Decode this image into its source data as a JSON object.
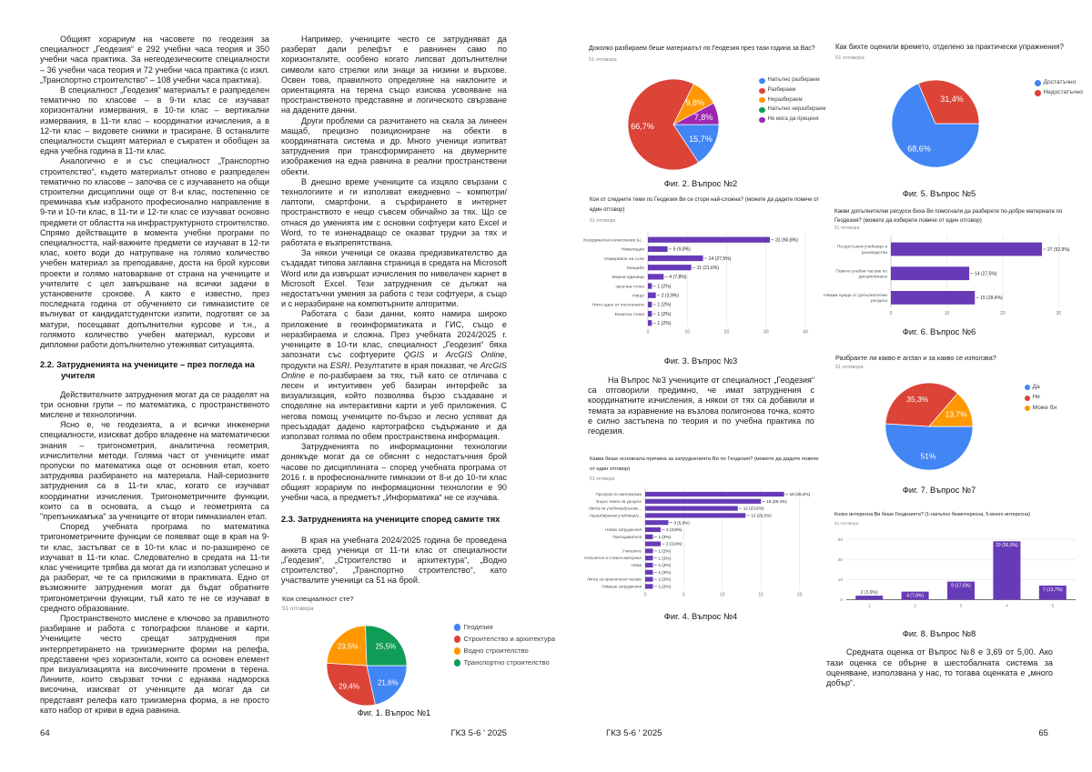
{
  "page64": {
    "col1": {
      "paragraphs_before": [
        "Общият хорариум на часовете по геодезия за специалност „Геодезия“ е 292 учебни часа теория и 350 учебни часа практика. За негеодезическите специалности – 36 учебни часа теория и 72 учебни часа практика (с изкл. „Транспортно строителство“ – 108 учебни часа практика).",
        "В специалност „Геодезия“ материалът е разпределен тематично по класове – в 9-ти клас се изучават хоризонтални измервания, в 10-ти клас – вертикални измервания, в 11-ти клас – координатни изчисления, а в 12-ти клас – видовете снимки и трасиране. В останалите специалности същият материал е съкратен и обобщен за една учебна година в 11-ти клас.",
        "Аналогично е и със специалност „Транспортно строителство“, където материалът отново е разпределен тематично по класове – започва се с изучаването на общи строителни дисциплини още от 8-и клас, постепенно се преминава към избраното професионално направление в 9-ти и 10-ти клас, в 11-ти и 12-ти клас се изучават основно предмети от областта на инфраструктурното строителство. Спрямо действащите в момента учебни програми по специалността, най-важните предмети се изучават в 12-ти клас, което води до натрупване на голямо количество учебен материал за преподаване, доста на брой курсови проекти и голямо натоварване от страна на учениците и учителите с цел завършване на всички задачи в установените срокове. А както е известно, през последната година от обучението си гимназистите се вълнуват от кандидатстудентски изпити, подготвят се за матури, посещават допълнителни курсове и т.н., а голямото количество учебен материал, курсови и дипломни работи допълнително утежняват ситуацията."
      ],
      "heading": "2.2. Затрудненията на учениците – през погледа на учителя",
      "paragraphs_after": [
        "Действителните затруднения могат да се разделят на три основни групи – по математика, с пространственото мислене и технологични.",
        "Ясно е, че геодезията, а и всички инженерни специалности, изискват добро владеене на математически знания – тригонометрия, аналитична геометрия, изчислителни методи. Голяма част от учениците имат пропуски по математика още от основния етап, което затруднява разбирането на материала. Най-сериозните затруднения са в 11-ти клас, когато се изучават координатни изчисления. Тригонометричните функции, които са в основата, а също и геометрията са \"препъникамъка\" за учениците от втори гимназиален етап.",
        "Според учебната програма по математика тригонометричните функции се появяват още в края на 9-ти клас, застъпват се в 10-ти клас и по-разширено се изучават в 11-ти клас. Следователно в средата на 11-ти клас учениците трябва да могат да ги използват успешно и да разберат, че те са приложими в практиката. Едно от възможните затруднения могат да бъдат обратните тригонометрични функции, тъй като те не се изучават в средното образование.",
        "Пространственото мислене е ключово за правилното разбиране и работа с топографски планове и карти. Учениците често срещат затруднения при интерпретирането на триизмерните форми на релефа, представени чрез хоризонтали, които са основен елемент при визуализацията на височинните промени в терена. Линиите, които свързват точки с еднаква надморска височина, изискват от учениците да могат да си представят релефа като триизмерна форма, а не просто като набор от криви в една равнина."
      ]
    },
    "col2": {
      "paragraphs_before": [
        "Например, учениците често се затрудняват да разберат дали релефът е равнинен само по хоризонталите, особено когато липсват допълнителни символи като стрелки или знаци за низини и върхове. Освен това, правилното определяне на наклоните и ориентацията на терена също изисква усвояване на пространственото представяне и логическото свързване на дадените данни.",
        "Други проблеми са разчитането на скала за линеен мащаб, прецизно позициониране на обекти в координатната система и др. Много ученици изпитват затруднения при трансформирането на двумерните изображения на една равнина в реални пространствени обекти.",
        "В днешно време учениците са изцяло свързани с технологиите и ги използват ежедневно – компютри/лаптопи, смартфони, а сърфирането в интернет пространството е нещо съвсем обичайно за тях. Що се отнася до уменията им с основни софтуери като Excel и Word, то те изненадващо се оказват трудни за тях и работата е възпрепятствана.",
        "За някои ученици се оказва предизвикателство да създадат типова заглавна страница в средата на Microsoft Word или да извършат изчисления по нивелачен карнет в Microsoft Excel. Тези затруднения се дължат на недостатъчни умения за работа с тези софтуери, а също и с неразбиране на компютърните алгоритми.",
        "Работата с бази данни, която намира широко приложение в геоинформатиката и ГИС, също е неразбираема и сложна. През учебната 2024/2025 г. учениците в 10-ти клас, специалност „Геодезия“ бяха запознати със софтуерите *QGIS* и *ArcGIS Online*, продукти на *ESRI*. Резултатите в края показват, че *ArcGIS Online* е по-разбираем за тях, тъй като се отличава с лесен и интуитивен уеб базиран интерфейс за визуализация, който позволява бързо създаване и споделяне на интерактивни карти и уеб приложения. С негова помощ учениците по-бързо и лесно успяват да пресъздадат дадено картографско съдържание и да използват голяма по обем пространствена информация.",
        "Затрудненията по информационни технологии донякъде могат да се обяснят с недостатъчния брой часове по дисциплината – според учебната програма от 2016 г. в професионалните гимназии от 8-и до 10-ти клас общият хорариум по информационни технологии е 90 учебни часа, а предметът „Информатика“ не се изучава."
      ],
      "heading": "2.3. Затрудненията на учениците според самите тях",
      "paragraphs_after": [
        "В края на учебната 2024/2025 година бе проведена анкета сред ученици от 11-ти клас от специалности „Геодезия“, „Строителство и архитектура“, „Водно строителство“, „Транспортно строителство“, като участвалите ученици са 51 на брой."
      ]
    },
    "footer": {
      "page_number": "64",
      "journal": "ГКЗ 5-6 ' 2025"
    }
  },
  "page65": {
    "col3_paragraph": "На Въпрос №3 учениците от специалност „Геодезия“ са отговорили предимно, че имат затруднения с координатните изчисления, а някои от тях са добавили и темата за изравнение на възлова полигонова точка, която е силно застъпена по теория и по учебна практика по геодезия.",
    "col4_paragraph": "Средната оценка от Въпрос №8 е 3,69 от 5,00. Ако тази оценка се обърне в шестобалната система за оценяване, използвана у нас, то тогава оценката е „много добър“.",
    "footer": {
      "journal": "ГКЗ 5-6 ' 2025",
      "page_number": "65"
    }
  },
  "palette": {
    "blue": "#4285f4",
    "red": "#db4437",
    "orange": "#ff9800",
    "green": "#0f9d58",
    "purple": "#9c27b0",
    "bar_purple": "#673ab7"
  },
  "chart_data": [
    {
      "id": "fig1",
      "type": "pie",
      "title": "Коя специалност сте?",
      "responses": "51 отговора",
      "legend": [
        "Геодезия",
        "Строителство и архитектура",
        "Водно строителство",
        "Транспортно строителство"
      ],
      "values": [
        21.6,
        29.4,
        23.5,
        25.5
      ],
      "slice_labels": [
        "21,6%",
        "29,4%",
        "23,5%",
        "25,5%"
      ],
      "colors": [
        "#4285f4",
        "#db4437",
        "#ff9800",
        "#0f9d58"
      ],
      "caption": "Фиг. 1. Въпрос №1"
    },
    {
      "id": "fig2",
      "type": "pie",
      "title": "Доколко разбираем беше материалът по Геодезия през тази година за Вас?",
      "responses": "51 отговора",
      "legend": [
        "Напълно разбираем",
        "Разбираем",
        "Неразбираем",
        "Напълно неразбираем",
        "Не мога да преценя"
      ],
      "values": [
        15.7,
        66.7,
        9.8,
        0,
        7.8
      ],
      "slice_labels": [
        "15,7%",
        "66,7%",
        "9,8%",
        "",
        "7,8%"
      ],
      "colors": [
        "#4285f4",
        "#db4437",
        "#ff9800",
        "#0f9d58",
        "#9c27b0"
      ],
      "caption": "Фиг. 2. Въпрос №2"
    },
    {
      "id": "fig3",
      "type": "barh",
      "title": "Коя от следните теми по Геодезия Ви се стори най-сложна? (можете да дадете повече от един отговор)",
      "responses": "51 отговора",
      "categories": [
        "Координатни изчисления (н...",
        "Нивелация",
        "Измерване на ъгли",
        "Мащаби",
        "Мерни единици",
        "засечна точка",
        "Нищо",
        "Нито едно от посочените",
        "Базисна точка",
        ""
      ],
      "values": [
        31,
        5,
        14,
        11,
        4,
        1,
        2,
        1,
        1,
        1
      ],
      "value_labels": [
        "31 (60,8%)",
        "5 (9,8%)",
        "14 (27,5%)",
        "11 (21,6%)",
        "4 (7,8%)",
        "1 (2%)",
        "2 (3,9%)",
        "1 (2%)",
        "1 (2%)",
        "1 (2%)"
      ],
      "xticks": [
        0,
        10,
        20,
        30,
        40
      ],
      "xmax": 40,
      "color": "#673ab7",
      "caption": "Фиг. 3. Въпрос №3"
    },
    {
      "id": "fig4",
      "type": "barh",
      "title": "Каква беше основната причина за затрудненията Ви по Геодезия? (можете да дадете повече от един отговор)",
      "responses": "51 отговора",
      "categories": [
        "Пропуски по математика",
        "Бързо темпо на уроците",
        "Липса на учебници/ръково...",
        "Неразбираеми учебници/у...",
        "",
        "Нямах затруднения",
        "Преподавателя",
        "",
        "Учителите",
        "Непонятен и сложен материал",
        "Няма",
        "",
        "Липса на практически часове",
        "Нямаше затруднения"
      ],
      "values": [
        18,
        15,
        12,
        13,
        3,
        2,
        1,
        2,
        1,
        1,
        1,
        1,
        1,
        1
      ],
      "value_labels": [
        "18 (35,3%)",
        "15 (29,4%)",
        "12 (23,5%)",
        "13 (25,5%)",
        "3 (5,9%)",
        "2 (3,9%)",
        "1 (2%)",
        "2 (3,9%)",
        "1 (2%)",
        "1 (2%)",
        "1 (2%)",
        "1 (2%)",
        "1 (2%)",
        "1 (2%)"
      ],
      "xticks": [
        0,
        5,
        10,
        15,
        20
      ],
      "xmax": 20,
      "color": "#673ab7",
      "caption": "Фиг. 4. Въпрос №4"
    },
    {
      "id": "fig5",
      "type": "pie",
      "title": "Как бихте оценили времето, отделено за практически упражнения?",
      "responses": "51 отговора",
      "legend": [
        "Достатъчно",
        "Недостатъчно"
      ],
      "values": [
        68.6,
        31.4
      ],
      "slice_labels": [
        "68,6%",
        "31,4%"
      ],
      "colors": [
        "#4285f4",
        "#db4437"
      ],
      "caption": "Фиг. 5. Въпрос №5"
    },
    {
      "id": "fig6",
      "type": "barh",
      "title": "Какви допълнителни ресурси биха Ви помогнали да разберете по-добре материала по Геодезия? (можете да изберете повече от един отговор)",
      "responses": "51 отговора",
      "categories": [
        "По-достъпни учебници и\nръководства",
        "Повече учебни часове по\nдисциплината",
        "Нямам нужда от допълнителни\nресурси"
      ],
      "values": [
        27,
        14,
        15
      ],
      "value_labels": [
        "27 (52,9%)",
        "14 (27,5%)",
        "15 (29,4%)"
      ],
      "xticks": [
        0,
        10,
        20,
        30
      ],
      "xmax": 30,
      "color": "#673ab7",
      "caption": "Фиг. 6. Въпрос №6"
    },
    {
      "id": "fig7",
      "type": "pie",
      "title": "Разбрахте ли какво е arctan и за какво се използва?",
      "responses": "51 отговора",
      "legend": [
        "Да",
        "Не",
        "Може би"
      ],
      "values": [
        51,
        35.3,
        13.7
      ],
      "slice_labels": [
        "51%",
        "35,3%",
        "13,7%"
      ],
      "colors": [
        "#4285f4",
        "#db4437",
        "#ff9800"
      ],
      "caption": "Фиг. 7. Въпрос №7"
    },
    {
      "id": "fig8",
      "type": "barv",
      "title": "Колко интересна Ви беше Геодезията? (1-напълно безинтересна, 5-много интересна)",
      "responses": "51 отговора",
      "categories": [
        "1",
        "2",
        "3",
        "4",
        "5"
      ],
      "values": [
        2,
        4,
        9,
        29,
        7
      ],
      "value_labels": [
        "2 (3,9%)",
        "4 (7,8%)",
        "9 (17,6%)",
        "29 (56,9%)",
        "7 (13,7%)"
      ],
      "yticks": [
        0,
        10,
        20,
        30
      ],
      "ymax": 30,
      "color": "#673ab7",
      "caption": "Фиг. 8. Въпрос №8"
    }
  ]
}
